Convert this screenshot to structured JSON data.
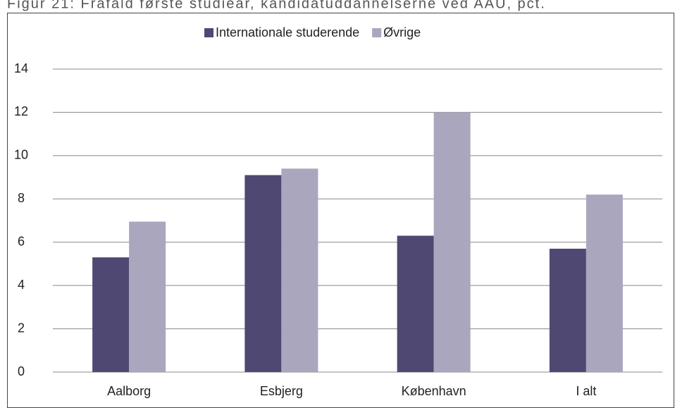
{
  "chart_data": {
    "type": "bar",
    "title": "Figur 21: Frafald første studieår, kandidatuddannelserne ved AAU, pct.",
    "categories": [
      "Aalborg",
      "Esbjerg",
      "København",
      "I alt"
    ],
    "series": [
      {
        "name": "Internationale studerende",
        "color": "#4e4872",
        "values": [
          5.3,
          9.1,
          6.3,
          5.7
        ]
      },
      {
        "name": "Øvrige",
        "color": "#a9a6be",
        "values": [
          6.95,
          9.4,
          12.0,
          8.2
        ]
      }
    ],
    "ylim": [
      0,
      14
    ],
    "yticks": [
      0,
      2,
      4,
      6,
      8,
      10,
      12,
      14
    ],
    "grid": true,
    "legend": "top"
  }
}
